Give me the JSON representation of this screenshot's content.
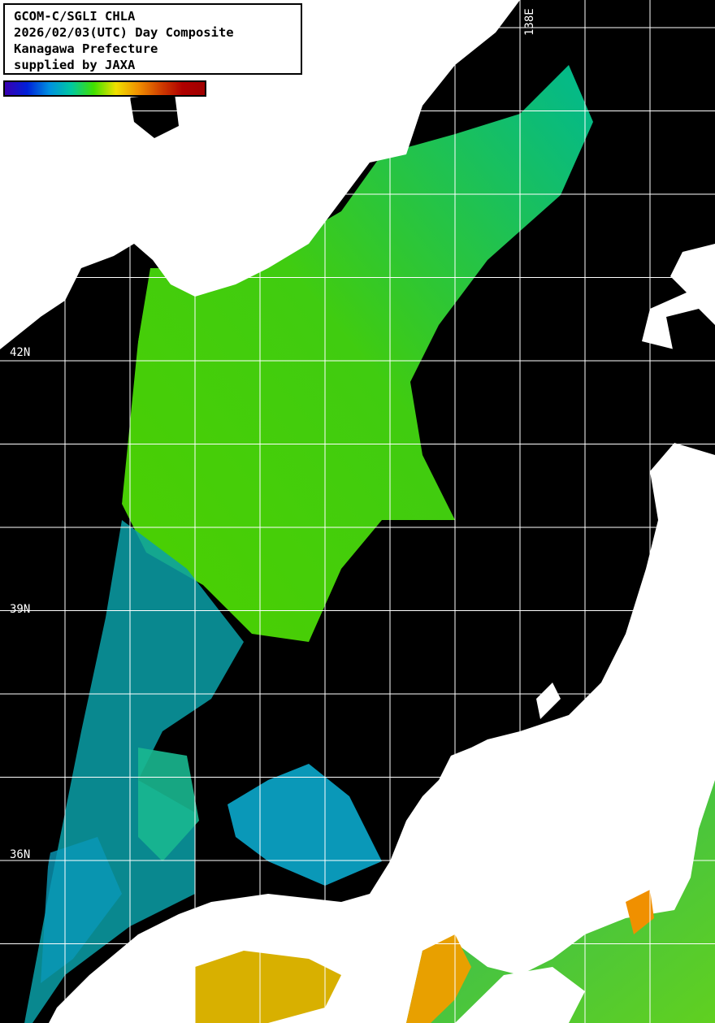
{
  "header": {
    "lines": [
      "GCOM-C/SGLI CHLA",
      "2026/02/03(UTC) Day Composite",
      "Kanagawa Prefecture",
      "supplied by JAXA"
    ]
  },
  "colorbar": {
    "colors": [
      "#3a00b0",
      "#0020d8",
      "#0090e0",
      "#00c8a0",
      "#40e000",
      "#f0e000",
      "#f09000",
      "#d04000",
      "#b00000",
      "#a00000"
    ]
  },
  "map": {
    "lat_labels": [
      "42N",
      "39N",
      "36N"
    ],
    "lon_labels": [
      "138E"
    ],
    "colors": {
      "ocean_nodata": "#000000",
      "land": "#ffffff",
      "grid": "#ffffff",
      "high_chla": "#58d000",
      "mid_chla": "#00b890",
      "low_chla": "#0090c0",
      "coastal": "#f09000"
    }
  }
}
